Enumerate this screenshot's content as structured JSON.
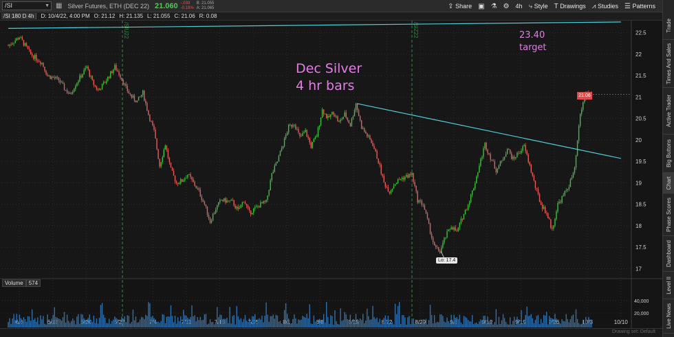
{
  "toolbar": {
    "symbol": "/SI",
    "description": "Silver Futures, ETH (DEC 22)",
    "last_price": "21.060",
    "change": "-.039",
    "change_pct": "-0.18%",
    "bid": "B: 21.055",
    "ask": "A: 21.065",
    "share_label": "Share",
    "timeframe": "4h",
    "style_label": "Style",
    "drawings_label": "Drawings",
    "studies_label": "Studies",
    "patterns_label": "Patterns"
  },
  "infobar": {
    "title": "/SI 180 D 4h",
    "date": "D: 10/4/22, 4:00 PM",
    "open": "O: 21.12",
    "high": "H: 21.135",
    "low": "L: 21.055",
    "close": "C: 21.06",
    "range": "R: 0.08"
  },
  "annotations": {
    "title_line1": "Dec Silver",
    "title_line2": "4 hr bars",
    "target_value": "23.40",
    "target_label": "target",
    "low_label": "Lo: 17.4",
    "last_price_tag": "21.06"
  },
  "volume": {
    "label": "Volume",
    "value": "574"
  },
  "sidebar_tabs": [
    "Trade",
    "Times And Sales",
    "Active Trader",
    "Big Buttons",
    "Chart",
    "Phase Scores",
    "Dashboard",
    "Level II",
    "Live News"
  ],
  "bottom_note": "Drawing set: Default",
  "expiry_labels": [
    "/SIU22",
    "/SIZ22"
  ],
  "colors": {
    "up": "#3fbf3f",
    "down": "#e35d5d",
    "trendline": "#4fd0d8",
    "annotation": "#e67de6",
    "background": "#151515",
    "expiry_line": "#2f8a4a"
  },
  "chart_data": {
    "type": "candlestick",
    "title": "",
    "x_tick_labels": [
      "6/6",
      "6/13",
      "6/20",
      "6/27",
      "7/4",
      "7/11",
      "7/18",
      "7/25",
      "8/1",
      "8/8",
      "8/15",
      "8/22",
      "8/29",
      "9/5",
      "9/12",
      "9/19",
      "9/26",
      "10/3",
      "10/10"
    ],
    "y_tick_labels": [
      "17",
      "17.5",
      "18",
      "18.5",
      "19",
      "19.5",
      "20",
      "20.5",
      "21",
      "21.5",
      "22",
      "22.5"
    ],
    "ylim": [
      16.8,
      22.75
    ],
    "volume_tick_labels": [
      "40,000",
      "20,000"
    ],
    "close_path": [
      [
        0,
        22.2
      ],
      [
        2,
        22.4
      ],
      [
        4,
        22.0
      ],
      [
        6,
        21.8
      ],
      [
        7,
        21.5
      ],
      [
        9,
        21.4
      ],
      [
        10,
        21.2
      ],
      [
        11,
        21.05
      ],
      [
        12,
        21.3
      ],
      [
        14,
        21.7
      ],
      [
        15,
        21.35
      ],
      [
        16,
        21.15
      ],
      [
        17,
        21.3
      ],
      [
        19,
        21.7
      ],
      [
        20,
        21.5
      ],
      [
        21,
        21.2
      ],
      [
        22,
        21.0
      ],
      [
        23,
        20.9
      ],
      [
        24,
        21.1
      ],
      [
        25,
        20.6
      ],
      [
        26,
        20.2
      ],
      [
        27,
        19.4
      ],
      [
        28,
        19.9
      ],
      [
        29,
        19.3
      ],
      [
        30,
        19.0
      ],
      [
        31,
        19.05
      ],
      [
        32,
        19.2
      ],
      [
        33,
        19.0
      ],
      [
        34,
        18.8
      ],
      [
        35,
        18.5
      ],
      [
        36,
        18.1
      ],
      [
        37,
        18.4
      ],
      [
        38,
        18.6
      ],
      [
        40,
        18.55
      ],
      [
        41,
        18.35
      ],
      [
        42,
        18.6
      ],
      [
        43,
        18.3
      ],
      [
        44,
        18.4
      ],
      [
        45,
        18.5
      ],
      [
        46,
        18.55
      ],
      [
        47,
        19.2
      ],
      [
        48,
        19.5
      ],
      [
        49,
        19.9
      ],
      [
        50,
        20.3
      ],
      [
        51,
        20.4
      ],
      [
        52,
        20.05
      ],
      [
        53,
        20.2
      ],
      [
        54,
        19.85
      ],
      [
        55,
        20.1
      ],
      [
        56,
        20.7
      ],
      [
        57,
        20.5
      ],
      [
        58,
        20.65
      ],
      [
        59,
        20.4
      ],
      [
        60,
        20.6
      ],
      [
        61,
        20.35
      ],
      [
        62,
        20.85
      ],
      [
        63,
        20.3
      ],
      [
        64,
        20.1
      ],
      [
        65,
        19.9
      ],
      [
        66,
        19.5
      ],
      [
        67,
        19.0
      ],
      [
        68,
        18.8
      ],
      [
        69,
        19.0
      ],
      [
        70,
        19.1
      ],
      [
        71,
        19.15
      ],
      [
        72,
        19.2
      ],
      [
        73,
        18.6
      ],
      [
        74,
        18.5
      ],
      [
        75,
        18.0
      ],
      [
        76,
        17.5
      ],
      [
        77,
        17.4
      ],
      [
        78,
        17.75
      ],
      [
        79,
        18.0
      ],
      [
        80,
        17.85
      ],
      [
        81,
        18.2
      ],
      [
        82,
        18.5
      ],
      [
        83,
        18.9
      ],
      [
        84,
        19.4
      ],
      [
        85,
        19.9
      ],
      [
        86,
        19.6
      ],
      [
        87,
        19.3
      ],
      [
        88,
        19.5
      ],
      [
        89,
        19.8
      ],
      [
        90,
        19.55
      ],
      [
        91,
        19.7
      ],
      [
        92,
        19.85
      ],
      [
        93,
        19.4
      ],
      [
        94,
        18.9
      ],
      [
        95,
        18.5
      ],
      [
        96,
        18.3
      ],
      [
        97,
        17.9
      ],
      [
        98,
        18.5
      ],
      [
        99,
        18.7
      ],
      [
        100,
        18.95
      ],
      [
        101,
        19.3
      ],
      [
        102,
        20.6
      ],
      [
        103,
        21.1
      ],
      [
        104,
        21.06
      ]
    ],
    "x_positions_count": 105,
    "trendlines": [
      {
        "from": [
          0,
          22.6
        ],
        "to": [
          109,
          22.75
        ]
      },
      {
        "from": [
          62,
          20.85
        ],
        "to": [
          109,
          19.57
        ]
      }
    ],
    "low_marker": {
      "x": 77,
      "y": 17.4
    },
    "grid": true,
    "legend": "none"
  }
}
